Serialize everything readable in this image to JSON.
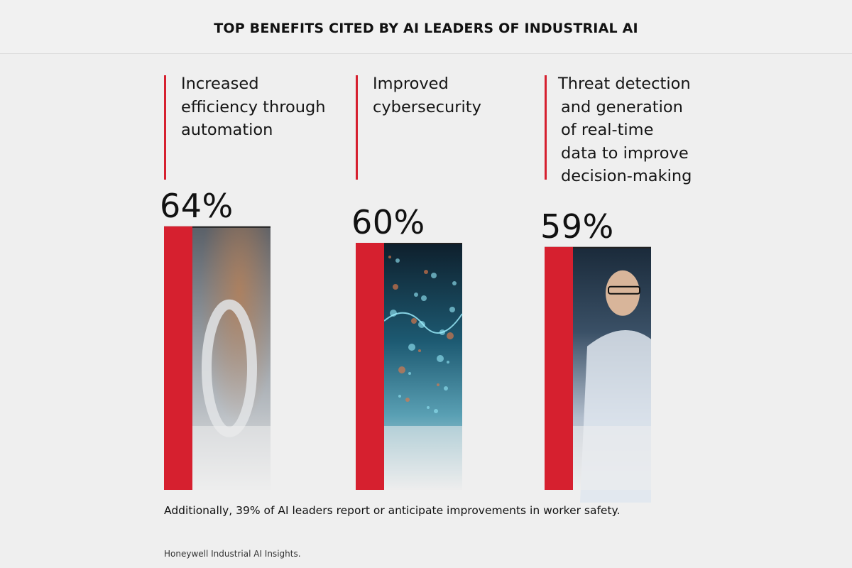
{
  "chart_data": {
    "type": "bar",
    "title": "TOP BENEFITS CITED BY AI LEADERS OF INDUSTRIAL AI",
    "unit": "%",
    "ylim": [
      0,
      100
    ],
    "categories": [
      "Increased efficiency through automation",
      "Improved cybersecurity",
      "Threat detection and generation of real-time data to improve decision-making"
    ],
    "values": [
      64,
      60,
      59
    ],
    "value_labels": [
      "64%",
      "60%",
      "59%"
    ],
    "label_lines": [
      [
        "Increased",
        "efficiency through",
        "automation"
      ],
      [
        "Improved",
        "cybersecurity"
      ],
      [
        "Threat detection",
        "and generation",
        "of real-time",
        "data to improve",
        "decision-making"
      ]
    ],
    "bar_color": "#d6202f",
    "bar_image_themes": [
      "robotic-arm-photo",
      "data-network-photo",
      "engineer-photo"
    ]
  },
  "note": "Additionally, 39% of AI leaders report or anticipate improvements in worker safety.",
  "source": "Honeywell Industrial AI Insights."
}
